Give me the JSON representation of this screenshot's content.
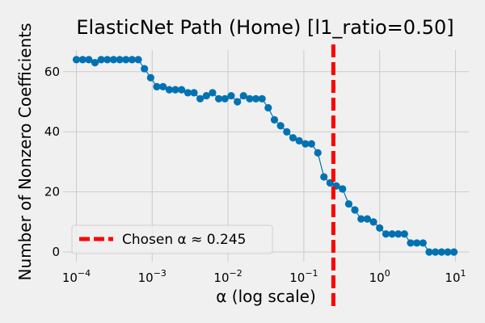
{
  "chart_data": {
    "type": "line",
    "title": "ElasticNet Path (Home) [l1_ratio=0.50]",
    "xlabel": "α (log scale)",
    "ylabel": "Number of Nonzero Coefficients",
    "x_scale": "log",
    "xlim": [
      6.67e-05,
      15
    ],
    "ylim": [
      -3.2,
      67.2
    ],
    "x_ticks": [
      {
        "value": 0.0001,
        "base": "10",
        "exp": "−4"
      },
      {
        "value": 0.001,
        "base": "10",
        "exp": "−3"
      },
      {
        "value": 0.01,
        "base": "10",
        "exp": "−2"
      },
      {
        "value": 0.1,
        "base": "10",
        "exp": "−1"
      },
      {
        "value": 1,
        "base": "10",
        "exp": "0"
      },
      {
        "value": 10,
        "base": "10",
        "exp": "1"
      }
    ],
    "y_ticks": [
      0,
      20,
      40,
      60
    ],
    "grid": true,
    "legend_position": "lower-left",
    "series": [
      {
        "color": "#0072b2",
        "x": [
          0.0001,
          0.000121,
          0.000146,
          0.000176,
          0.000212,
          0.000256,
          0.000309,
          0.000373,
          0.00045,
          0.000543,
          0.000655,
          0.00079,
          0.000954,
          0.00115,
          0.00139,
          0.00168,
          0.00202,
          0.00244,
          0.00295,
          0.00356,
          0.00429,
          0.00518,
          0.00625,
          0.00754,
          0.0091,
          0.011,
          0.0133,
          0.016,
          0.0193,
          0.0233,
          0.0281,
          0.0339,
          0.0409,
          0.0494,
          0.0596,
          0.0719,
          0.0869,
          0.105,
          0.126,
          0.153,
          0.184,
          0.222,
          0.268,
          0.324,
          0.391,
          0.471,
          0.569,
          0.687,
          0.829,
          1.0,
          1.21,
          1.46,
          1.76,
          2.12,
          2.56,
          3.09,
          3.73,
          4.5,
          5.43,
          6.55,
          7.91,
          9.54
        ],
        "y": [
          64,
          64,
          64,
          63,
          64,
          64,
          64,
          64,
          64,
          64,
          64,
          61,
          58,
          55,
          55,
          54,
          54,
          54,
          53,
          53,
          51,
          52,
          53,
          51,
          51,
          52,
          50,
          52,
          51,
          51,
          51,
          48,
          44,
          42,
          40,
          38,
          37,
          36,
          36,
          33,
          25,
          23,
          22,
          21,
          16,
          14,
          11,
          11,
          10,
          8,
          6,
          6,
          6,
          6,
          3,
          3,
          3,
          0,
          0,
          0,
          0,
          0
        ]
      }
    ],
    "vline": {
      "x": 0.245,
      "color": "#ff0000",
      "label": "Chosen α ≈ 0.245"
    }
  }
}
